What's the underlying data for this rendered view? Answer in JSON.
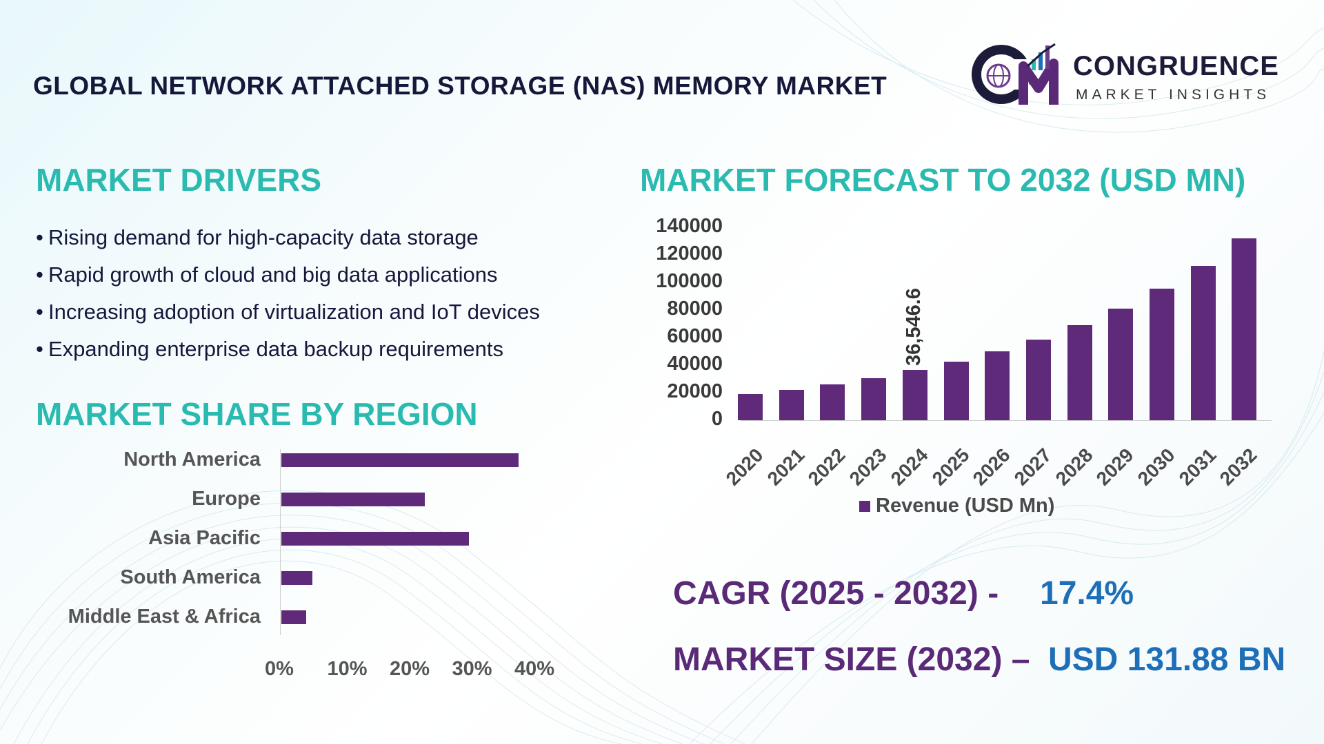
{
  "header": {
    "title": "GLOBAL NETWORK ATTACHED STORAGE (NAS) MEMORY MARKET",
    "brand_name": "CONGRUENCE",
    "brand_tagline": "MARKET INSIGHTS"
  },
  "drivers": {
    "title": "MARKET DRIVERS",
    "items": [
      "Rising demand for high-capacity data storage",
      "Rapid growth of cloud and big data applications",
      "Increasing adoption of virtualization and IoT devices",
      "Expanding enterprise data backup requirements"
    ]
  },
  "region": {
    "title": "MARKET SHARE BY REGION"
  },
  "forecast": {
    "title": "MARKET FORECAST TO 2032 (USD MN)"
  },
  "stats": {
    "cagr_label": "CAGR (2025 - 2032) -",
    "cagr_value": "17.4%",
    "size_label": "MARKET SIZE (2032) –",
    "size_value": "USD 131.88 BN"
  },
  "colors": {
    "bar": "#5f2a7a",
    "title_teal": "#2bbab0",
    "stat_purple": "#5a2a78",
    "stat_blue": "#1d6fb8"
  },
  "chart_data": [
    {
      "type": "bar",
      "orientation": "horizontal",
      "title": "MARKET SHARE BY REGION",
      "categories": [
        "North America",
        "Europe",
        "Asia Pacific",
        "South America",
        "Middle East & Africa"
      ],
      "values": [
        38,
        23,
        30,
        5,
        4
      ],
      "x_ticks": [
        "0%",
        "10%",
        "20%",
        "30%",
        "40%"
      ],
      "xlim": [
        0,
        40
      ],
      "unit": "%"
    },
    {
      "type": "bar",
      "orientation": "vertical",
      "title": "MARKET FORECAST TO 2032 (USD MN)",
      "categories": [
        "2020",
        "2021",
        "2022",
        "2023",
        "2024",
        "2025",
        "2026",
        "2027",
        "2028",
        "2029",
        "2030",
        "2031",
        "2032"
      ],
      "series": [
        {
          "name": "Revenue (USD Mn)",
          "values": [
            19000,
            22000,
            26000,
            30500,
            36546.6,
            42500,
            50000,
            58500,
            69000,
            81000,
            95500,
            112000,
            131880
          ]
        }
      ],
      "y_ticks": [
        "0",
        "20000",
        "40000",
        "60000",
        "80000",
        "100000",
        "120000",
        "140000"
      ],
      "ylim": [
        0,
        140000
      ],
      "data_labels": [
        {
          "category": "2024",
          "text": "36,546.6"
        }
      ],
      "legend": "bottom"
    }
  ]
}
